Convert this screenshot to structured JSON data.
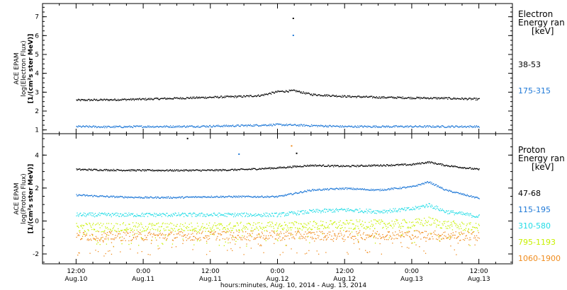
{
  "chart_data": [
    {
      "type": "scatter",
      "panel": "electron",
      "ylabel_lines": [
        "ACE EPAM",
        "log(Electron Flux)",
        "[1/(cm²s ster MeV)]"
      ],
      "ylim": [
        0.8,
        7.7
      ],
      "yticks": [
        1,
        2,
        3,
        4,
        5,
        6,
        7
      ],
      "legend_title_lines": [
        "Electron",
        "Energy ran",
        "[keV]"
      ],
      "series": [
        {
          "name": "38-53",
          "color": "#000000",
          "x": [
            0,
            6,
            12,
            18,
            24,
            30,
            33,
            36,
            39,
            42,
            48,
            54,
            60,
            66,
            72
          ],
          "values": [
            2.6,
            2.62,
            2.65,
            2.7,
            2.75,
            2.8,
            2.85,
            3.05,
            3.1,
            2.9,
            2.8,
            2.75,
            2.72,
            2.7,
            2.65
          ]
        },
        {
          "name": "175-315",
          "color": "#1e78d7",
          "x": [
            0,
            6,
            12,
            18,
            24,
            30,
            36,
            42,
            48,
            54,
            60,
            66,
            72
          ],
          "values": [
            1.2,
            1.18,
            1.2,
            1.2,
            1.22,
            1.25,
            1.3,
            1.25,
            1.2,
            1.2,
            1.2,
            1.2,
            1.2
          ]
        }
      ],
      "outliers": [
        {
          "x": 38.7,
          "y": 6.95,
          "color": "#000000"
        },
        {
          "x": 38.7,
          "y": 6.05,
          "color": "#1e78d7"
        }
      ]
    },
    {
      "type": "scatter",
      "panel": "proton",
      "ylabel_lines": [
        "ACE EPAM",
        "log(Proton Flux)",
        "[1/(cm²s ster MeV)]"
      ],
      "ylim": [
        -2.6,
        5.3
      ],
      "yticks": [
        -2,
        0,
        2,
        4
      ],
      "legend_title_lines": [
        "Proton",
        "Energy ran",
        "[keV]"
      ],
      "series": [
        {
          "name": "47-68",
          "color": "#000000",
          "x": [
            0,
            6,
            12,
            18,
            24,
            30,
            36,
            42,
            48,
            54,
            60,
            63,
            66,
            72
          ],
          "values": [
            3.15,
            3.12,
            3.1,
            3.1,
            3.1,
            3.15,
            3.25,
            3.4,
            3.35,
            3.4,
            3.45,
            3.6,
            3.4,
            3.15
          ]
        },
        {
          "name": "115-195",
          "color": "#1e78d7",
          "x": [
            0,
            6,
            12,
            18,
            24,
            30,
            36,
            42,
            48,
            54,
            60,
            63,
            66,
            72
          ],
          "values": [
            1.6,
            1.5,
            1.45,
            1.45,
            1.5,
            1.5,
            1.5,
            1.9,
            2.0,
            1.9,
            2.1,
            2.4,
            1.9,
            1.4
          ]
        },
        {
          "name": "310-580",
          "color": "#22dce6",
          "x": [
            0,
            6,
            12,
            18,
            24,
            30,
            36,
            42,
            48,
            54,
            60,
            63,
            66,
            72
          ],
          "values": [
            0.4,
            0.4,
            0.4,
            0.4,
            0.4,
            0.4,
            0.4,
            0.6,
            0.7,
            0.6,
            0.75,
            1.0,
            0.6,
            0.3
          ]
        },
        {
          "name": "795-1193",
          "color": "#c8f000",
          "x": [
            0,
            12,
            24,
            36,
            48,
            60,
            63,
            66,
            72
          ],
          "values": [
            -0.35,
            -0.35,
            -0.35,
            -0.3,
            -0.2,
            -0.15,
            0.0,
            -0.2,
            -0.4
          ]
        },
        {
          "name": "1060-1900",
          "color": "#f08c1e",
          "x": [
            0,
            12,
            24,
            36,
            48,
            60,
            72
          ],
          "values": [
            -0.9,
            -0.9,
            -0.85,
            -0.85,
            -0.85,
            -0.8,
            -0.9
          ]
        }
      ],
      "outliers": [
        {
          "x": 19.8,
          "y": 5.05,
          "color": "#000000"
        },
        {
          "x": 38.4,
          "y": 4.6,
          "color": "#f08c1e"
        },
        {
          "x": 29.0,
          "y": 4.1,
          "color": "#1e78d7"
        },
        {
          "x": 39.3,
          "y": 4.15,
          "color": "#000000"
        }
      ]
    }
  ],
  "x_axis": {
    "xlim_hours": [
      -6,
      78
    ],
    "ticks": [
      {
        "hour": 0,
        "time": "12:00",
        "date": "Aug.10"
      },
      {
        "hour": 12,
        "time": "0:00",
        "date": "Aug.11"
      },
      {
        "hour": 24,
        "time": "12:00",
        "date": "Aug.11"
      },
      {
        "hour": 36,
        "time": "0:00",
        "date": "Aug.12"
      },
      {
        "hour": 48,
        "time": "12:00",
        "date": "Aug.12"
      },
      {
        "hour": 60,
        "time": "0:00",
        "date": "Aug.13"
      },
      {
        "hour": 72,
        "time": "12:00",
        "date": "Aug.13"
      }
    ],
    "label": "hours:minutes, Aug. 10, 2014 - Aug. 13, 2014"
  }
}
